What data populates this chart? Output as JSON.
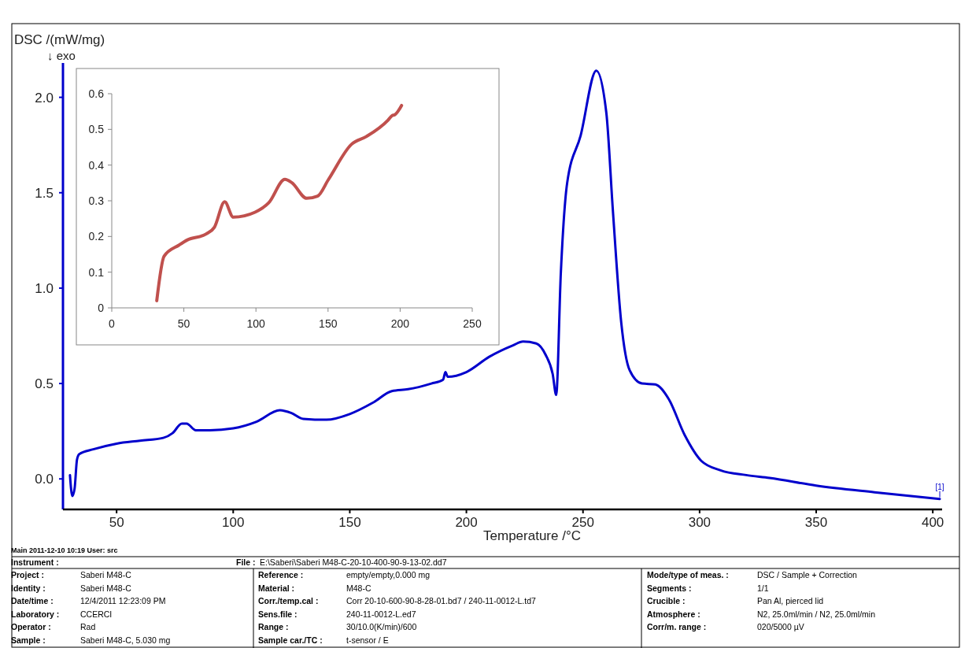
{
  "chart_data": [
    {
      "type": "line",
      "xlabel": "Temperature /°C",
      "ylabel": "DSC /(mW/mg)",
      "xlim": [
        27,
        404
      ],
      "ylim": [
        -0.16,
        2.18
      ],
      "xticks": [
        50,
        100,
        150,
        200,
        250,
        300,
        350,
        400
      ],
      "yticks": [
        {
          "value": 0,
          "label": "0.0"
        },
        {
          "value": 0.5,
          "label": "0.5"
        },
        {
          "value": 1,
          "label": "1.0"
        },
        {
          "value": 1.5,
          "label": "1.5"
        },
        {
          "value": 2,
          "label": "2.0"
        }
      ],
      "grid": false,
      "series": [
        {
          "color": "#0000cc",
          "x": [
            30,
            31,
            32,
            33,
            34,
            40,
            50,
            60,
            70,
            74,
            78,
            80,
            84,
            90,
            100,
            110,
            120,
            125,
            130,
            140,
            150,
            160,
            168,
            175,
            185,
            190,
            191,
            192,
            200,
            209.8,
            220,
            224.3,
            230,
            234,
            237,
            238.5,
            240.5,
            243.2,
            249,
            255.7,
            260,
            262.8,
            266.4,
            270,
            275.3,
            281,
            286.7,
            293.6,
            300.7,
            309,
            320,
            330,
            350,
            375,
            403
          ],
          "values": [
            0.02,
            -0.09,
            -0.05,
            0.1,
            0.13,
            0.155,
            0.185,
            0.2,
            0.215,
            0.24,
            0.29,
            0.29,
            0.255,
            0.255,
            0.265,
            0.3,
            0.36,
            0.345,
            0.315,
            0.31,
            0.34,
            0.4,
            0.46,
            0.47,
            0.5,
            0.52,
            0.56,
            0.535,
            0.56,
            0.64,
            0.7,
            0.72,
            0.71,
            0.65,
            0.55,
            0.44,
            1.08,
            1.55,
            1.8,
            2.14,
            1.92,
            1.41,
            0.82,
            0.57,
            0.5,
            0.495,
            0.42,
            0.23,
            0.095,
            0.045,
            0.02,
            0.005,
            -0.035,
            -0.07,
            -0.105
          ]
        }
      ],
      "annotations": [
        "↓ exo",
        {
          "text": "[1]",
          "x": 403,
          "y": -0.105
        },
        "Main   2011-12-10 10:19    User: src",
        "Instrument :",
        "File :",
        "E:\\Saberi\\Saberi M48-C-20-10-400-90-9-13-02.dd7",
        "Project :",
        "Saberi M48-C",
        "Identity :",
        "Saberi M48-C",
        "Date/time :",
        "12/4/2011 12:23:09 PM",
        "Laboratory :",
        "CCERCI",
        "Operator :",
        "Rad",
        "Sample :",
        "Saberi M48-C, 5.030 mg",
        "Reference :",
        "empty/empty,0.000 mg",
        "Material :",
        "M48-C",
        "Corr./temp.cal :",
        "Corr 20-10-600-90-8-28-01.bd7 / 240-11-0012-L.td7",
        "Sens.file :",
        "240-11-0012-L.ed7",
        "Range :",
        "30/10.0(K/min)/600",
        "Sample car./TC :",
        "t-sensor / E",
        "Mode/type of meas. :",
        "DSC / Sample + Correction",
        "Segments :",
        "1/1",
        "Crucible :",
        "Pan Al, pierced lid",
        "Atmosphere :",
        "N2, 25.0ml/min / N2, 25.0ml/min",
        "Corr/m. range :",
        "020/5000 µV"
      ]
    },
    {
      "type": "line",
      "xlim": [
        0,
        250
      ],
      "ylim": [
        0,
        0.6
      ],
      "xticks": [
        0,
        50,
        100,
        150,
        200,
        250
      ],
      "yticks": [
        0,
        0.1,
        0.2,
        0.3,
        0.4,
        0.5,
        0.6
      ],
      "grid": false,
      "series": [
        {
          "color": "#c0504d",
          "x": [
            31.2,
            36.3,
            46.7,
            52.3,
            65.5,
            71.2,
            78.3,
            84.3,
            99.4,
            108.8,
            120.1,
            124.8,
            135.2,
            142.7,
            150.2,
            166.2,
            176.6,
            191.6,
            194.5,
            196.3,
            201
          ],
          "values": [
            0.02,
            0.145,
            0.176,
            0.19,
            0.207,
            0.226,
            0.297,
            0.254,
            0.268,
            0.294,
            0.36,
            0.351,
            0.307,
            0.313,
            0.359,
            0.458,
            0.48,
            0.526,
            0.539,
            0.541,
            0.567
          ]
        }
      ]
    }
  ]
}
